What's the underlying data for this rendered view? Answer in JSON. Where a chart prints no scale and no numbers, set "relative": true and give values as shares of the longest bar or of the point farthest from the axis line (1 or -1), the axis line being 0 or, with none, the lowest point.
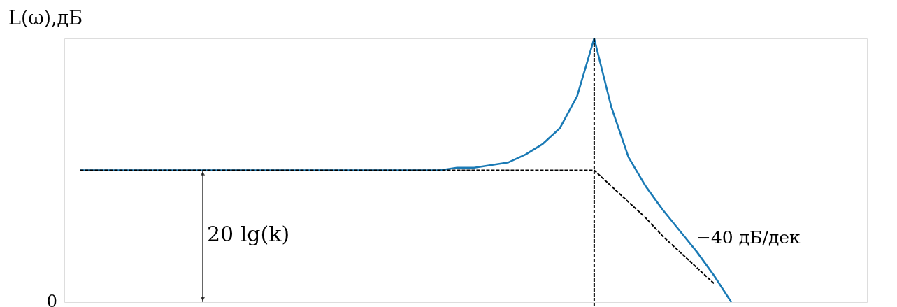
{
  "chart_data": {
    "type": "line",
    "relative": true,
    "ylabel": "L(ω),дБ",
    "categories": [
      null,
      null,
      null,
      null,
      null,
      null,
      null,
      null,
      null,
      null,
      null,
      null,
      null,
      null,
      null,
      null,
      null,
      null,
      null,
      null,
      null,
      null,
      null,
      null,
      null,
      null,
      null,
      null,
      null,
      null,
      null,
      null,
      null,
      null,
      null,
      null,
      null,
      null,
      null,
      null,
      null,
      null,
      null,
      null,
      null,
      null
    ],
    "series": [
      {
        "color": "#1a7ab5",
        "line_style": "solid",
        "values": [
          0.5,
          0.5,
          0.5,
          0.5,
          0.5,
          0.5,
          0.5,
          0.5,
          0.5,
          0.5,
          0.5,
          0.5,
          0.5,
          0.5,
          0.5,
          0.5,
          0.5,
          0.5,
          0.5,
          0.5,
          0.5,
          0.5,
          0.51,
          0.51,
          0.52,
          0.53,
          0.56,
          0.6,
          0.66,
          0.78,
          1,
          0.74,
          0.55,
          0.44,
          0.35,
          0.27,
          0.19,
          0.1,
          0,
          null,
          null,
          null,
          null,
          null,
          null,
          null
        ]
      },
      {
        "color": "#000000",
        "line_style": "dashed",
        "values": [
          0.5,
          0.5,
          0.5,
          0.5,
          0.5,
          0.5,
          0.5,
          0.5,
          0.5,
          0.5,
          0.5,
          0.5,
          0.5,
          0.5,
          0.5,
          0.5,
          0.5,
          0.5,
          0.5,
          0.5,
          0.5,
          0.5,
          0.5,
          0.5,
          0.5,
          0.5,
          0.5,
          0.5,
          0.5,
          0.5,
          0.5,
          0.44,
          0.38,
          0.32,
          0.25,
          0.19,
          0.13,
          0.07,
          null,
          null,
          null,
          null,
          null,
          null,
          null,
          null
        ]
      }
    ],
    "ref_lines": [
      {
        "axis": "x",
        "color": "#000000",
        "line_style": "dashed"
      }
    ],
    "annotations": [
      "0",
      "20 lg(k)",
      "−40 дБ/дек"
    ]
  }
}
